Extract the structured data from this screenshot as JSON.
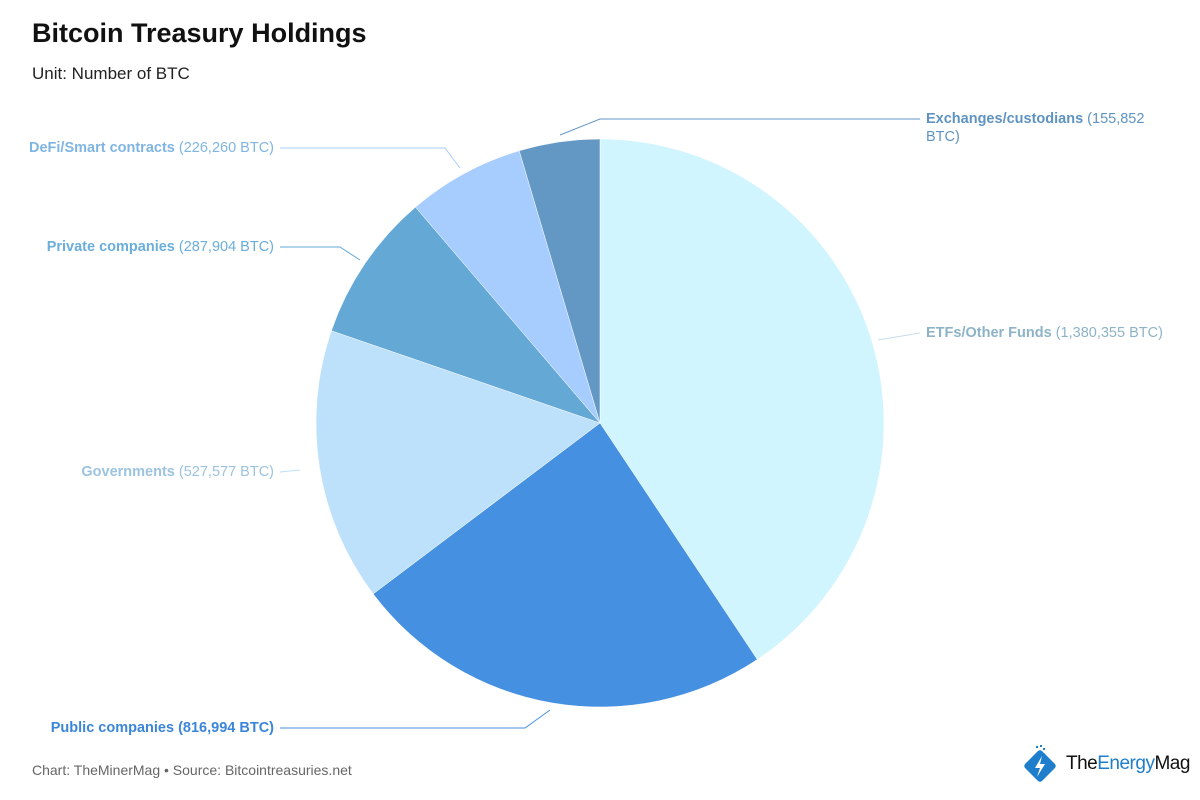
{
  "chart_data": {
    "type": "pie",
    "title": "Bitcoin Treasury Holdings",
    "subtitle": "Unit: Number of BTC",
    "unit": "BTC",
    "slices": [
      {
        "label": "ETFs/Other Funds",
        "value": 1380355,
        "value_text": "(1,380,355 BTC)",
        "color": "#d0f5fe",
        "label_color": "#8db4c6"
      },
      {
        "label": "Public companies",
        "value": 816994,
        "value_text": "(816,994 BTC)",
        "color": "#4590e0",
        "label_color": "#3b86d8"
      },
      {
        "label": "Governments",
        "value": 527577,
        "value_text": "(527,577 BTC)",
        "color": "#bde0fb",
        "label_color": "#9cc3df"
      },
      {
        "label": "Private companies",
        "value": 287904,
        "value_text": "(287,904 BTC)",
        "color": "#64a8d6",
        "label_color": "#6aaedc"
      },
      {
        "label": "DeFi/Smart contracts",
        "value": 226260,
        "value_text": "(226,260 BTC)",
        "color": "#a6cdfd",
        "label_color": "#7fb5e3"
      },
      {
        "label": "Exchanges/custodians",
        "value": 155852,
        "value_text": "(155,852 BTC)",
        "color": "#6398c4",
        "label_color": "#5f93c1"
      }
    ],
    "start_angle": "top",
    "direction": "clockwise"
  },
  "footer": "Chart: TheMinerMag • Source: Bitcointreasuries.net",
  "logo": {
    "part1": "The",
    "part2": "Energy",
    "part3": "Mag"
  }
}
